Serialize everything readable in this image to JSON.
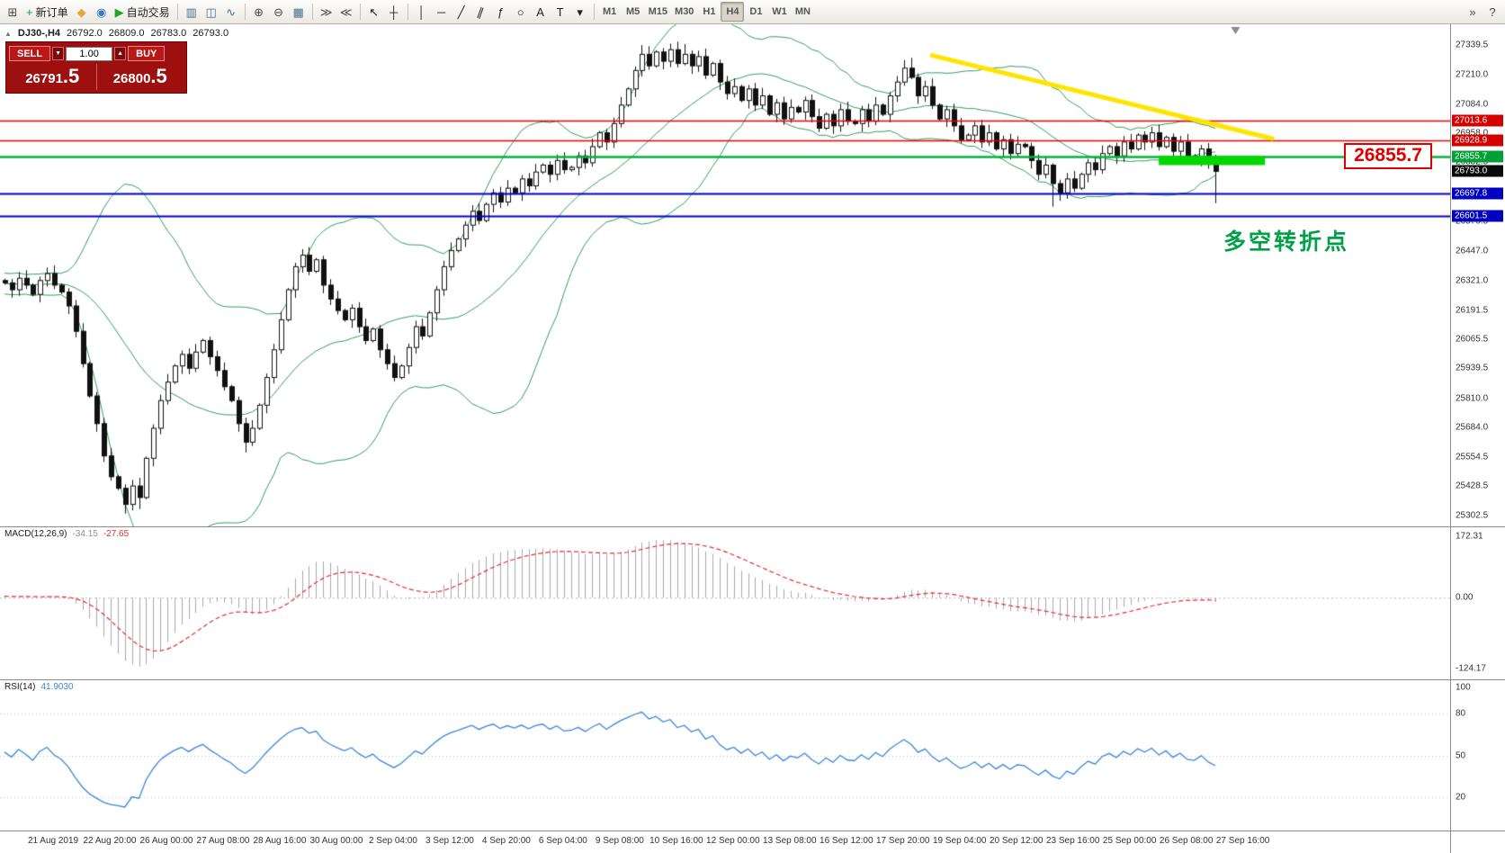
{
  "toolbar": {
    "groups": [
      {
        "items": [
          {
            "name": "new-chart-button",
            "glyph": "⊞",
            "color": "#4a4a4a"
          },
          {
            "name": "new-order-button",
            "glyph": "+",
            "color": "#1f9d3a",
            "label": "新订单"
          },
          {
            "name": "profiles-button",
            "glyph": "◆",
            "color": "#e2a93b"
          },
          {
            "name": "community-button",
            "glyph": "◉",
            "color": "#3b79c3"
          },
          {
            "name": "autotrade-button",
            "glyph": "▶",
            "color": "#27a22b",
            "label": "自动交易"
          }
        ]
      },
      {
        "items": [
          {
            "name": "bar-chart-button",
            "glyph": "▥",
            "color": "#4a6f8a"
          },
          {
            "name": "candlestick-button",
            "glyph": "◫",
            "color": "#4a6f8a"
          },
          {
            "name": "line-chart-button",
            "glyph": "∿",
            "color": "#4a6f8a"
          }
        ]
      },
      {
        "items": [
          {
            "name": "zoom-in-button",
            "glyph": "⊕",
            "color": "#4a4a4a"
          },
          {
            "name": "zoom-out-button",
            "glyph": "⊖",
            "color": "#4a4a4a"
          },
          {
            "name": "tile-windows-button",
            "glyph": "▦",
            "color": "#4a6f8a"
          }
        ]
      },
      {
        "items": [
          {
            "name": "auto-scroll-button",
            "glyph": "≫",
            "color": "#4a4a4a"
          },
          {
            "name": "chart-shift-button",
            "glyph": "≪",
            "color": "#4a4a4a"
          }
        ]
      },
      {
        "items": [
          {
            "name": "cursor-button",
            "glyph": "↖",
            "color": "#222"
          },
          {
            "name": "crosshair-button",
            "glyph": "┼",
            "color": "#222"
          }
        ]
      },
      {
        "items": [
          {
            "name": "vertical-line-button",
            "glyph": "│",
            "color": "#222"
          },
          {
            "name": "horizontal-line-button",
            "glyph": "─",
            "color": "#222"
          },
          {
            "name": "trendline-button",
            "glyph": "╱",
            "color": "#222"
          },
          {
            "name": "channel-button",
            "glyph": "∥",
            "color": "#222",
            "rot": true
          },
          {
            "name": "fibonacci-button",
            "glyph": "ƒ",
            "color": "#222"
          },
          {
            "name": "shapes-button",
            "glyph": "○",
            "color": "#222"
          },
          {
            "name": "text-button",
            "glyph": "A",
            "color": "#222"
          },
          {
            "name": "text-label-button",
            "glyph": "T",
            "color": "#222"
          },
          {
            "name": "arrows-button",
            "glyph": "▾",
            "color": "#222"
          }
        ]
      }
    ],
    "timeframes": [
      {
        "name": "timeframe-m1-button",
        "label": "M1"
      },
      {
        "name": "timeframe-m5-button",
        "label": "M5"
      },
      {
        "name": "timeframe-m15-button",
        "label": "M15"
      },
      {
        "name": "timeframe-m30-button",
        "label": "M30"
      },
      {
        "name": "timeframe-h1-button",
        "label": "H1"
      },
      {
        "name": "timeframe-h4-button",
        "label": "H4",
        "active": true
      },
      {
        "name": "timeframe-d1-button",
        "label": "D1"
      },
      {
        "name": "timeframe-w1-button",
        "label": "W1"
      },
      {
        "name": "timeframe-mn-button",
        "label": "MN"
      }
    ],
    "right_buttons": [
      {
        "name": "toolbar-overflow-button",
        "glyph": "»",
        "color": "#444"
      },
      {
        "name": "help-button",
        "glyph": "?",
        "color": "#444"
      }
    ]
  },
  "chart": {
    "symbol_header": {
      "collapse_icon": "▲",
      "symbol": "DJ30-,H4",
      "open": "26792.0",
      "high": "26809.0",
      "low": "26783.0",
      "close": "26793.0"
    },
    "one_click": {
      "sell_label": "SELL",
      "buy_label": "BUY",
      "sell_price_main": "26791",
      "sell_price_frac": ".5",
      "buy_price_main": "26800",
      "buy_price_frac": ".5",
      "volume": "1.00",
      "vol_down_glyph": "▼",
      "vol_up_glyph": "▲"
    },
    "levels": [
      {
        "label": "27013.6",
        "price": 27013.6,
        "color": "#e80000",
        "tag_bg": "#d40000",
        "line_width": 1.5
      },
      {
        "label": "26928.9",
        "price": 26928.9,
        "color": "#e80000",
        "tag_bg": "#d40000",
        "line_width": 1.5
      },
      {
        "label": "26855.7",
        "price": 26855.7,
        "color": "#00b43c",
        "tag_bg": "#00a036",
        "line_width": 2.5
      },
      {
        "label": "26697.8",
        "price": 26697.8,
        "color": "#0000d0",
        "tag_bg": "#0000c0",
        "line_width": 2
      },
      {
        "label": "26601.5",
        "price": 26601.5,
        "color": "#0000d0",
        "tag_bg": "#0000c0",
        "line_width": 2
      }
    ],
    "current_price": {
      "label": "26793.0",
      "price": 26793.0,
      "tag_bg": "#0a0a0a"
    },
    "annotations": {
      "callout_text": "26855.7",
      "callout_price": 26855.7,
      "note_text": "多空转折点",
      "note_price": 26505
    },
    "time_axis": [
      "21 Aug 2019",
      "22 Aug 20:00",
      "26 Aug 00:00",
      "27 Aug 08:00",
      "28 Aug 16:00",
      "30 Aug 00:00",
      "2 Sep 04:00",
      "3 Sep 12:00",
      "4 Sep 20:00",
      "6 Sep 04:00",
      "9 Sep 08:00",
      "10 Sep 16:00",
      "12 Sep 00:00",
      "13 Sep 08:00",
      "16 Sep 12:00",
      "17 Sep 20:00",
      "19 Sep 04:00",
      "20 Sep 12:00",
      "23 Sep 16:00",
      "25 Sep 00:00",
      "26 Sep 08:00",
      "27 Sep 16:00"
    ]
  },
  "macd": {
    "label": "MACD(12,26,9)",
    "value1": "-34.15",
    "value2": "-27.65",
    "axis": [
      "172.31",
      "0.00",
      "-124.17"
    ]
  },
  "rsi": {
    "label": "RSI(14)",
    "value": "41.9030",
    "axis": [
      "100",
      "80",
      "50",
      "20"
    ],
    "levels": [
      80,
      50,
      20
    ]
  },
  "chart_data": {
    "type": "candlestick",
    "symbol": "DJ30-",
    "timeframe": "H4",
    "price_range": {
      "min": 25255,
      "max": 27430
    },
    "last_bar_fraction": 0.84,
    "shift_marker_fraction": 0.852,
    "price_ticks": [
      27339.5,
      27210.0,
      27084.0,
      26958.0,
      26832.5,
      26706.5,
      26576.5,
      26447.0,
      26321.0,
      26191.5,
      26065.5,
      25939.5,
      25810.0,
      25684.0,
      25554.5,
      25428.5,
      25302.5
    ],
    "pre_closes": [
      26280,
      26320,
      26300,
      26350,
      26310,
      26270,
      26330,
      26300,
      26260,
      26310,
      26340,
      26300,
      26280,
      26320,
      26290,
      26330,
      26310,
      26280,
      26300,
      26320
    ],
    "closes": [
      26310,
      26280,
      26330,
      26300,
      26260,
      26320,
      26350,
      26300,
      26270,
      26210,
      26100,
      25960,
      25820,
      25700,
      25560,
      25470,
      25420,
      25350,
      25430,
      25380,
      25550,
      25680,
      25800,
      25880,
      25950,
      26000,
      25940,
      26010,
      26060,
      25990,
      25930,
      25860,
      25800,
      25700,
      25620,
      25680,
      25780,
      25900,
      26020,
      26150,
      26280,
      26380,
      26430,
      26360,
      26410,
      26300,
      26240,
      26190,
      26150,
      26200,
      26120,
      26060,
      26110,
      26020,
      25960,
      25900,
      25950,
      26030,
      26120,
      26080,
      26180,
      26280,
      26380,
      26450,
      26500,
      26560,
      26620,
      26580,
      26650,
      26700,
      26660,
      26720,
      26700,
      26760,
      26730,
      26790,
      26820,
      26780,
      26840,
      26800,
      26810,
      26860,
      26830,
      26900,
      26960,
      26920,
      27000,
      27080,
      27150,
      27230,
      27300,
      27250,
      27310,
      27270,
      27320,
      27260,
      27300,
      27250,
      27290,
      27210,
      27260,
      27180,
      27130,
      27160,
      27100,
      27150,
      27080,
      27120,
      27040,
      27090,
      27020,
      27070,
      27050,
      27100,
      27030,
      26980,
      27040,
      26990,
      27060,
      27010,
      27000,
      27060,
      27010,
      27080,
      27040,
      27120,
      27180,
      27240,
      27200,
      27120,
      27160,
      27080,
      27020,
      27060,
      26990,
      26930,
      26950,
      26990,
      26920,
      26960,
      26890,
      26930,
      26870,
      26910,
      26900,
      26840,
      26780,
      26820,
      26740,
      26700,
      26760,
      26720,
      26780,
      26830,
      26800,
      26870,
      26900,
      26860,
      26920,
      26890,
      26950,
      26920,
      26960,
      26900,
      26940,
      26880,
      26920,
      26860,
      26850,
      26890,
      26830,
      26793
    ],
    "wick_lows": {
      "17": 25310,
      "19": 25330,
      "34": 25575,
      "148": 26640,
      "171": 26655
    },
    "wick_highs": {
      "90": 27340,
      "96": 27345,
      "128": 27285
    },
    "bollinger": {
      "period": 20,
      "deviation": 2,
      "color": "#2e9e5b"
    },
    "trendline": {
      "from_bar": 131,
      "from_price": 27295,
      "to_bar": 179,
      "to_price": 26935,
      "color": "#ffe400",
      "width": 5
    },
    "highlight_rect": {
      "from_bar": 163,
      "to_bar": 178,
      "top_price": 26860,
      "bottom_price": 26820,
      "color": "#00d800"
    },
    "candle_up_fill": "#ffffff",
    "candle_down_fill": "#111111",
    "candle_outline": "#111111",
    "macd_hist_color": "#a8a8a8",
    "macd_signal_color": "#e03030",
    "rsi_color": "#3b87d9"
  }
}
